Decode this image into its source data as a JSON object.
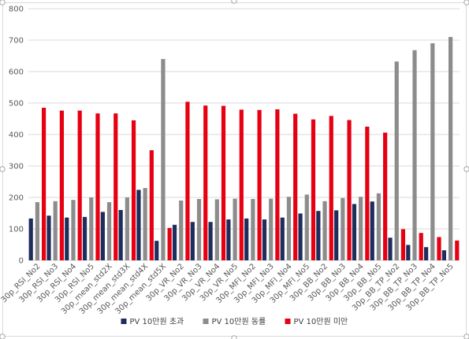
{
  "colors": {
    "frame": "#d9d9d9",
    "gridline": "#d9d9d9",
    "axis_text": "#595959",
    "handle": "#a6a6a6"
  },
  "chart_data": {
    "type": "bar",
    "title": "",
    "xlabel": "",
    "ylabel": "",
    "ylim": [
      0,
      800
    ],
    "yticks": [
      0,
      100,
      200,
      300,
      400,
      500,
      600,
      700,
      800
    ],
    "grid": true,
    "legend_position": "bottom",
    "categories": [
      "30p_RSI_No2",
      "30p_RSI_No3",
      "30p_RSI_No4",
      "30p_RSI_No5",
      "30p_mean_std2X",
      "30p_mean_std3X",
      "30p_mean_std4X",
      "30p_mean_std5X",
      "30p_VR_No2",
      "30p_VR_No3",
      "30p_VR_No4",
      "30p_VR_No5",
      "30p_MFI_No2",
      "30p_MFI_No3",
      "30p_MFI_No4",
      "30p_MFI_No5",
      "30p_BB_No2",
      "30p_BB_No3",
      "30p_BB_No4",
      "30p_BB_No5",
      "30p_BB_TP_No2",
      "30p_BB_TP_No3",
      "30p_BB_TP_No4",
      "30p_BB_TP_No5"
    ],
    "series": [
      {
        "name": "PV 10만원 초과",
        "color": "#1f2d5c",
        "values": [
          133,
          142,
          136,
          138,
          154,
          160,
          224,
          62,
          113,
          122,
          122,
          130,
          133,
          130,
          136,
          149,
          157,
          159,
          179,
          187,
          72,
          49,
          42,
          32
        ]
      },
      {
        "name": "PV 10만원 동률",
        "color": "#8c8c8c",
        "values": [
          185,
          188,
          192,
          200,
          185,
          200,
          230,
          640,
          190,
          195,
          194,
          196,
          195,
          196,
          202,
          209,
          188,
          198,
          202,
          213,
          632,
          668,
          690,
          710
        ]
      },
      {
        "name": "PV 10만원 미만",
        "color": "#e60012",
        "values": [
          485,
          476,
          476,
          467,
          467,
          445,
          350,
          103,
          504,
          492,
          491,
          479,
          478,
          480,
          466,
          448,
          459,
          446,
          425,
          406,
          99,
          87,
          74,
          63
        ]
      }
    ]
  }
}
